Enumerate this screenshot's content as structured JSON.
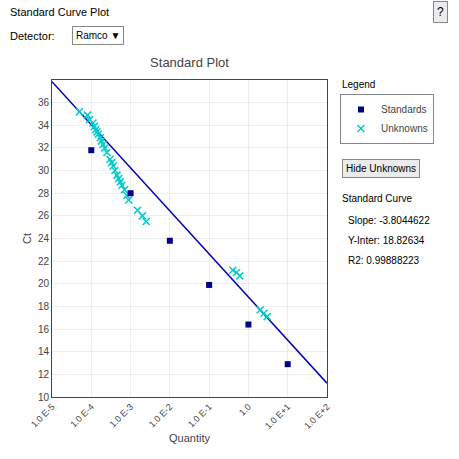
{
  "chart_data": {
    "type": "scatter",
    "title": "Standard Plot",
    "xlabel": "Quantity",
    "ylabel": "Ct",
    "log": "x",
    "grid": true,
    "xlim": [
      1e-05,
      100
    ],
    "xticks": [
      {
        "value": 1e-05,
        "label": "1.0 E-5"
      },
      {
        "value": 0.0001,
        "label": "1.0 E-4"
      },
      {
        "value": 0.001,
        "label": "1.0 E-3"
      },
      {
        "value": 0.01,
        "label": "1.0 E-2"
      },
      {
        "value": 0.1,
        "label": "1.0 E-1"
      },
      {
        "value": 1.0,
        "label": "1.0"
      },
      {
        "value": 10.0,
        "label": "1.0 E+1"
      },
      {
        "value": 100.0,
        "label": "1.0 E+2"
      }
    ],
    "ylim": [
      10,
      38
    ],
    "yticks": [
      10,
      12,
      14,
      16,
      18,
      20,
      22,
      24,
      26,
      28,
      30,
      32,
      34,
      36
    ],
    "series": [
      {
        "type": "line",
        "color": "#0000bb",
        "line_style": "solid",
        "x": [
          1e-05,
          100
        ],
        "values": [
          37.848651,
          11.2174156
        ]
      },
      {
        "name": "Unknowns",
        "type": "scatter",
        "marker": "x",
        "color": "#00cccc",
        "x": [
          5e-05,
          8e-05,
          9e-05,
          0.00011,
          0.00012,
          0.00013,
          0.00014,
          0.00015,
          0.00017,
          0.00018,
          0.0002,
          0.00022,
          0.00025,
          0.0003,
          0.00033,
          0.00036,
          0.0004,
          0.00045,
          0.0005,
          0.00055,
          0.0006,
          0.0007,
          0.0008,
          0.0009,
          0.0015,
          0.002,
          0.0025,
          0.4,
          0.5,
          0.6,
          2.0,
          2.5,
          3.0
        ],
        "values": [
          35.2,
          34.9,
          34.5,
          34.2,
          33.9,
          33.6,
          33.4,
          33.2,
          32.9,
          32.6,
          32.3,
          32.0,
          31.6,
          31.0,
          30.7,
          30.4,
          30.0,
          29.6,
          29.3,
          29.0,
          28.7,
          28.3,
          27.8,
          27.4,
          26.5,
          26.0,
          25.5,
          21.2,
          21.0,
          20.7,
          17.7,
          17.4,
          17.1
        ]
      },
      {
        "name": "Standards",
        "type": "scatter",
        "marker": "square",
        "color": "#00008b",
        "x": [
          0.0001,
          0.001,
          0.01,
          0.1,
          1.0,
          10.0
        ],
        "values": [
          31.8,
          28.0,
          23.8,
          19.9,
          16.4,
          12.9
        ]
      }
    ],
    "annotations": [
      "Standard Curve Plot",
      "?",
      "Detector:",
      "Ramco ▼",
      "Legend",
      "Hide Unknowns",
      "Standard Curve",
      "Slope: -3.8044622",
      "Y-Inter: 18.82634",
      "R2: 0.99888223"
    ]
  }
}
